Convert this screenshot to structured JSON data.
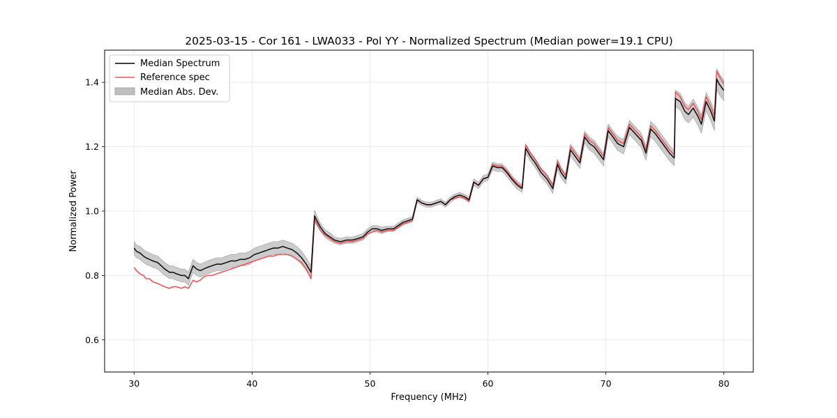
{
  "chart_data": {
    "type": "line",
    "title": "2025-03-15 - Cor 161 - LWA033 - Pol YY - Normalized Spectrum (Median power=19.1 CPU)",
    "xlabel": "Frequency (MHz)",
    "ylabel": "Normalized Power",
    "xlim": [
      27.5,
      82.5
    ],
    "ylim": [
      0.5,
      1.5
    ],
    "xticks": [
      30,
      40,
      50,
      60,
      70,
      80
    ],
    "yticks": [
      0.6,
      0.8,
      1.0,
      1.2,
      1.4
    ],
    "xtick_labels": [
      "30",
      "40",
      "50",
      "60",
      "70",
      "80"
    ],
    "ytick_labels": [
      "0.6",
      "0.8",
      "1.0",
      "1.2",
      "1.4"
    ],
    "grid": true,
    "legend_position": "top-left",
    "colors": {
      "median": "#000000",
      "reference": "#ee5555",
      "mad_fill": "#bfbfbf",
      "mad_edge": "#999999",
      "grid": "#e6e6e6"
    },
    "series": [
      {
        "name": "Median Spectrum",
        "x": [
          30.0,
          30.2,
          30.5,
          30.8,
          31.0,
          31.3,
          31.6,
          32.0,
          32.3,
          32.6,
          33.0,
          33.3,
          33.6,
          34.0,
          34.3,
          34.6,
          35.0,
          35.3,
          35.6,
          35.9,
          36.2,
          36.6,
          37.0,
          37.4,
          37.8,
          38.2,
          38.6,
          39.0,
          39.4,
          39.8,
          40.2,
          40.6,
          41.0,
          41.4,
          41.8,
          42.2,
          42.6,
          43.0,
          43.4,
          43.8,
          44.2,
          44.6,
          45.0,
          45.3,
          45.5,
          45.8,
          46.2,
          46.6,
          47.0,
          47.5,
          48.0,
          48.5,
          49.0,
          49.4,
          49.8,
          50.2,
          50.6,
          51.0,
          51.5,
          52.0,
          52.4,
          52.8,
          53.2,
          53.6,
          54.0,
          54.4,
          54.8,
          55.2,
          55.6,
          56.0,
          56.4,
          56.8,
          57.2,
          57.6,
          58.0,
          58.4,
          58.8,
          59.2,
          59.6,
          60.0,
          60.4,
          60.8,
          61.2,
          61.6,
          62.0,
          62.5,
          62.9,
          63.2,
          63.6,
          64.0,
          64.5,
          65.0,
          65.5,
          65.9,
          66.2,
          66.6,
          67.0,
          67.4,
          67.8,
          68.2,
          68.6,
          69.0,
          69.4,
          69.8,
          70.2,
          70.6,
          71.0,
          71.5,
          72.0,
          72.5,
          73.0,
          73.4,
          73.8,
          74.2,
          74.6,
          75.0,
          75.4,
          75.8,
          75.9,
          76.3,
          76.7,
          77.0,
          77.4,
          77.8,
          78.1,
          78.5,
          78.9,
          79.2,
          79.4,
          79.6,
          80.0
        ],
        "y": [
          0.885,
          0.875,
          0.87,
          0.86,
          0.855,
          0.85,
          0.845,
          0.84,
          0.83,
          0.82,
          0.81,
          0.81,
          0.805,
          0.8,
          0.8,
          0.79,
          0.83,
          0.82,
          0.815,
          0.82,
          0.825,
          0.83,
          0.835,
          0.835,
          0.84,
          0.845,
          0.845,
          0.85,
          0.85,
          0.855,
          0.865,
          0.87,
          0.875,
          0.88,
          0.885,
          0.885,
          0.89,
          0.885,
          0.88,
          0.87,
          0.855,
          0.835,
          0.81,
          0.985,
          0.97,
          0.95,
          0.93,
          0.92,
          0.91,
          0.905,
          0.91,
          0.91,
          0.915,
          0.92,
          0.935,
          0.945,
          0.945,
          0.94,
          0.945,
          0.945,
          0.955,
          0.965,
          0.97,
          0.975,
          1.035,
          1.025,
          1.02,
          1.02,
          1.025,
          1.03,
          1.02,
          1.035,
          1.045,
          1.05,
          1.045,
          1.035,
          1.09,
          1.08,
          1.1,
          1.105,
          1.14,
          1.135,
          1.135,
          1.12,
          1.1,
          1.08,
          1.07,
          1.195,
          1.17,
          1.15,
          1.12,
          1.1,
          1.07,
          1.145,
          1.12,
          1.1,
          1.19,
          1.17,
          1.15,
          1.23,
          1.21,
          1.2,
          1.18,
          1.16,
          1.25,
          1.23,
          1.21,
          1.2,
          1.26,
          1.24,
          1.22,
          1.18,
          1.255,
          1.24,
          1.22,
          1.2,
          1.18,
          1.165,
          1.35,
          1.34,
          1.31,
          1.3,
          1.32,
          1.295,
          1.27,
          1.34,
          1.31,
          1.28,
          1.41,
          1.395,
          1.375
        ]
      },
      {
        "name": "Reference spec",
        "x": [
          30.0,
          30.2,
          30.5,
          30.8,
          31.0,
          31.3,
          31.6,
          32.0,
          32.3,
          32.6,
          33.0,
          33.3,
          33.6,
          34.0,
          34.3,
          34.6,
          35.0,
          35.3,
          35.6,
          35.9,
          36.2,
          36.6,
          37.0,
          37.4,
          37.8,
          38.2,
          38.6,
          39.0,
          39.4,
          39.8,
          40.2,
          40.6,
          41.0,
          41.4,
          41.8,
          42.2,
          42.6,
          43.0,
          43.4,
          43.8,
          44.2,
          44.6,
          45.0,
          45.3,
          45.5,
          45.8,
          46.2,
          46.6,
          47.0,
          47.5,
          48.0,
          48.5,
          49.0,
          49.4,
          49.8,
          50.2,
          50.6,
          51.0,
          51.5,
          52.0,
          52.4,
          52.8,
          53.2,
          53.6,
          54.0,
          54.4,
          54.8,
          55.2,
          55.6,
          56.0,
          56.4,
          56.8,
          57.2,
          57.6,
          58.0,
          58.4,
          58.8,
          59.2,
          59.6,
          60.0,
          60.4,
          60.8,
          61.2,
          61.6,
          62.0,
          62.5,
          62.9,
          63.2,
          63.6,
          64.0,
          64.5,
          65.0,
          65.5,
          65.9,
          66.2,
          66.6,
          67.0,
          67.4,
          67.8,
          68.2,
          68.6,
          69.0,
          69.4,
          69.8,
          70.2,
          70.6,
          71.0,
          71.5,
          72.0,
          72.5,
          73.0,
          73.4,
          73.8,
          74.2,
          74.6,
          75.0,
          75.4,
          75.8,
          75.9,
          76.3,
          76.7,
          77.0,
          77.4,
          77.8,
          78.1,
          78.5,
          78.9,
          79.2,
          79.4,
          79.6,
          80.0
        ],
        "y": [
          0.825,
          0.815,
          0.805,
          0.8,
          0.79,
          0.79,
          0.78,
          0.775,
          0.77,
          0.765,
          0.76,
          0.765,
          0.765,
          0.76,
          0.765,
          0.76,
          0.785,
          0.78,
          0.785,
          0.795,
          0.8,
          0.8,
          0.805,
          0.81,
          0.815,
          0.82,
          0.825,
          0.83,
          0.835,
          0.84,
          0.845,
          0.85,
          0.855,
          0.86,
          0.86,
          0.865,
          0.865,
          0.865,
          0.86,
          0.85,
          0.84,
          0.82,
          0.79,
          0.975,
          0.96,
          0.94,
          0.925,
          0.915,
          0.905,
          0.9,
          0.905,
          0.905,
          0.91,
          0.915,
          0.93,
          0.935,
          0.94,
          0.935,
          0.94,
          0.94,
          0.95,
          0.96,
          0.965,
          0.97,
          1.035,
          1.025,
          1.02,
          1.02,
          1.025,
          1.03,
          1.02,
          1.035,
          1.04,
          1.045,
          1.04,
          1.03,
          1.09,
          1.08,
          1.1,
          1.105,
          1.145,
          1.14,
          1.14,
          1.125,
          1.105,
          1.085,
          1.075,
          1.205,
          1.18,
          1.16,
          1.13,
          1.11,
          1.08,
          1.155,
          1.13,
          1.11,
          1.2,
          1.18,
          1.16,
          1.24,
          1.22,
          1.21,
          1.19,
          1.17,
          1.26,
          1.24,
          1.22,
          1.21,
          1.27,
          1.25,
          1.23,
          1.19,
          1.265,
          1.25,
          1.23,
          1.21,
          1.19,
          1.175,
          1.37,
          1.355,
          1.325,
          1.315,
          1.335,
          1.31,
          1.285,
          1.355,
          1.325,
          1.295,
          1.435,
          1.42,
          1.395
        ]
      },
      {
        "name": "Median Abs. Dev.",
        "type": "band",
        "half_width": [
          0.02,
          0.02,
          0.02,
          0.02,
          0.02,
          0.02,
          0.02,
          0.02,
          0.02,
          0.02,
          0.02,
          0.02,
          0.02,
          0.02,
          0.02,
          0.02,
          0.02,
          0.02,
          0.02,
          0.02,
          0.02,
          0.02,
          0.02,
          0.02,
          0.02,
          0.02,
          0.02,
          0.02,
          0.02,
          0.02,
          0.02,
          0.02,
          0.02,
          0.02,
          0.02,
          0.02,
          0.02,
          0.02,
          0.02,
          0.02,
          0.02,
          0.02,
          0.02,
          0.018,
          0.015,
          0.012,
          0.012,
          0.012,
          0.01,
          0.01,
          0.01,
          0.01,
          0.01,
          0.01,
          0.01,
          0.01,
          0.01,
          0.01,
          0.008,
          0.008,
          0.008,
          0.008,
          0.008,
          0.008,
          0.008,
          0.008,
          0.008,
          0.008,
          0.008,
          0.008,
          0.008,
          0.008,
          0.008,
          0.008,
          0.008,
          0.008,
          0.01,
          0.01,
          0.01,
          0.01,
          0.012,
          0.012,
          0.012,
          0.012,
          0.012,
          0.012,
          0.012,
          0.014,
          0.014,
          0.014,
          0.015,
          0.015,
          0.015,
          0.016,
          0.016,
          0.016,
          0.018,
          0.018,
          0.018,
          0.018,
          0.02,
          0.02,
          0.02,
          0.02,
          0.02,
          0.02,
          0.022,
          0.022,
          0.022,
          0.022,
          0.022,
          0.022,
          0.024,
          0.024,
          0.024,
          0.024,
          0.024,
          0.024,
          0.026,
          0.026,
          0.026,
          0.026,
          0.028,
          0.028,
          0.028,
          0.028,
          0.03,
          0.03,
          0.032,
          0.032,
          0.032
        ]
      }
    ]
  }
}
